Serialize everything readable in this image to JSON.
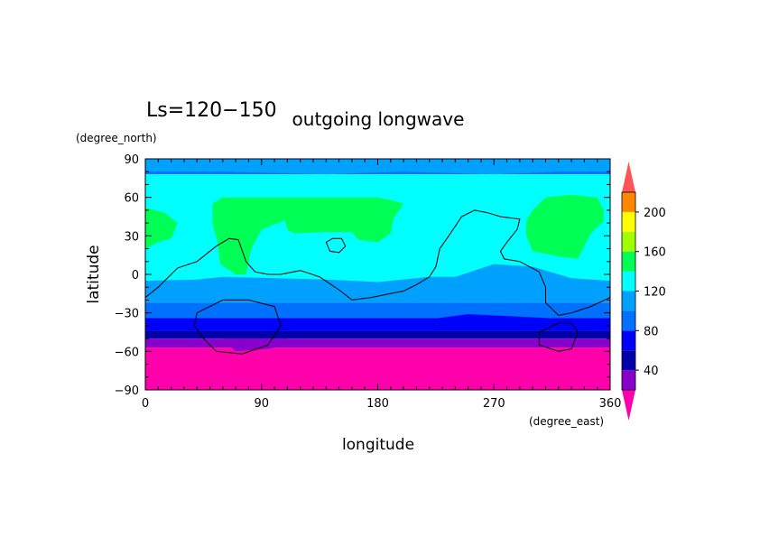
{
  "chart_data": {
    "type": "heatmap",
    "title_left": "Ls=120−150",
    "title": "outgoing longwave",
    "xlabel": "longitude",
    "ylabel": "latitude",
    "x_units": "(degree_east)",
    "y_units": "(degree_north)",
    "xlim": [
      0,
      360
    ],
    "ylim": [
      -90,
      90
    ],
    "xticks": [
      "0",
      "90",
      "180",
      "270",
      "360"
    ],
    "xtick_values": [
      0,
      90,
      180,
      270,
      360
    ],
    "yticks": [
      "90",
      "60",
      "30",
      "0",
      "−30",
      "−60",
      "−90"
    ],
    "ytick_values": [
      90,
      60,
      30,
      0,
      -30,
      -60,
      -90
    ],
    "colorbar": {
      "levels": [
        20,
        40,
        60,
        80,
        100,
        120,
        140,
        160,
        180,
        200,
        220
      ],
      "labels": [
        "40",
        "80",
        "120",
        "160",
        "200"
      ],
      "label_values": [
        40,
        80,
        120,
        160,
        200
      ],
      "colors": [
        "#8800cc",
        "#0000aa",
        "#0000ff",
        "#0070ff",
        "#00a0ff",
        "#00ffff",
        "#00ff55",
        "#a0ff00",
        "#ffff00",
        "#ff8800",
        "#ff3333"
      ],
      "under_color": "#ff00aa",
      "over_color": "#ff5555"
    },
    "bands": [
      {
        "lat_from": 90,
        "lat_to": 85,
        "color": "#00a0ff"
      },
      {
        "lat_from": 85,
        "lat_to": 78,
        "color": "#0070ff"
      },
      {
        "lat_from": 78,
        "lat_to": -8,
        "color": "#00ffff"
      },
      {
        "lat_from": -8,
        "lat_to": -22,
        "color": "#00a0ff"
      },
      {
        "lat_from": -22,
        "lat_to": -34,
        "color": "#0070ff"
      },
      {
        "lat_from": -34,
        "lat_to": -44,
        "color": "#0000ff"
      },
      {
        "lat_from": -44,
        "lat_to": -50,
        "color": "#0000aa"
      },
      {
        "lat_from": -50,
        "lat_to": -57,
        "color": "#8800cc"
      },
      {
        "lat_from": -57,
        "lat_to": -90,
        "color": "#ff00aa"
      }
    ],
    "regions": [
      {
        "color": "#00a0ff",
        "points": [
          [
            0,
            80
          ],
          [
            60,
            80
          ],
          [
            140,
            78
          ],
          [
            200,
            80
          ],
          [
            270,
            78
          ],
          [
            320,
            80
          ],
          [
            360,
            80
          ],
          [
            360,
            86
          ],
          [
            0,
            86
          ]
        ]
      },
      {
        "color": "#00ff55",
        "points": [
          [
            52,
            55
          ],
          [
            60,
            60
          ],
          [
            180,
            60
          ],
          [
            190,
            58
          ],
          [
            200,
            55
          ],
          [
            192,
            43
          ],
          [
            190,
            32
          ],
          [
            180,
            25
          ],
          [
            165,
            27
          ],
          [
            160,
            33
          ],
          [
            140,
            33
          ],
          [
            115,
            32
          ],
          [
            110,
            35
          ],
          [
            108,
            42
          ],
          [
            90,
            35
          ],
          [
            82,
            20
          ],
          [
            78,
            0
          ],
          [
            70,
            0
          ],
          [
            58,
            8
          ],
          [
            56,
            25
          ],
          [
            52,
            40
          ]
        ]
      },
      {
        "color": "#00ff55",
        "points": [
          [
            0,
            52
          ],
          [
            15,
            48
          ],
          [
            25,
            40
          ],
          [
            20,
            28
          ],
          [
            10,
            25
          ],
          [
            0,
            20
          ]
        ]
      },
      {
        "color": "#00ff55",
        "points": [
          [
            300,
            50
          ],
          [
            310,
            60
          ],
          [
            330,
            62
          ],
          [
            350,
            60
          ],
          [
            355,
            50
          ],
          [
            355,
            42
          ],
          [
            345,
            32
          ],
          [
            335,
            12
          ],
          [
            320,
            14
          ],
          [
            300,
            18
          ],
          [
            295,
            30
          ],
          [
            295,
            42
          ]
        ]
      },
      {
        "color": "#00a0ff",
        "points": [
          [
            0,
            -5
          ],
          [
            40,
            -4
          ],
          [
            60,
            -2
          ],
          [
            100,
            -3
          ],
          [
            140,
            -4
          ],
          [
            180,
            -6
          ],
          [
            220,
            -2
          ],
          [
            240,
            -2
          ],
          [
            270,
            8
          ],
          [
            300,
            6
          ],
          [
            330,
            -3
          ],
          [
            360,
            -5
          ],
          [
            360,
            -10
          ],
          [
            0,
            -10
          ]
        ]
      },
      {
        "color": "#0000ff",
        "points": [
          [
            0,
            -34
          ],
          [
            100,
            -35
          ],
          [
            180,
            -36
          ],
          [
            220,
            -35
          ],
          [
            250,
            -31
          ],
          [
            290,
            -33
          ],
          [
            330,
            -35
          ],
          [
            360,
            -34
          ],
          [
            360,
            -40
          ],
          [
            0,
            -40
          ]
        ]
      },
      {
        "color": "#8800cc",
        "points": [
          [
            60,
            -50
          ],
          [
            70,
            -60
          ],
          [
            95,
            -58
          ],
          [
            110,
            -55
          ],
          [
            110,
            -50
          ]
        ]
      }
    ],
    "coast_path": [
      [
        0,
        -18
      ],
      [
        10,
        -10
      ],
      [
        25,
        5
      ],
      [
        40,
        10
      ],
      [
        55,
        22
      ],
      [
        65,
        28
      ],
      [
        72,
        27
      ],
      [
        78,
        10
      ],
      [
        85,
        2
      ],
      [
        95,
        0
      ],
      [
        105,
        0
      ],
      [
        120,
        3
      ],
      [
        135,
        -2
      ],
      [
        150,
        -12
      ],
      [
        160,
        -20
      ],
      [
        175,
        -18
      ],
      [
        190,
        -15
      ],
      [
        200,
        -13
      ],
      [
        210,
        -8
      ],
      [
        220,
        -2
      ],
      [
        225,
        6
      ],
      [
        228,
        20
      ],
      [
        235,
        30
      ],
      [
        245,
        45
      ],
      [
        255,
        50
      ],
      [
        265,
        48
      ],
      [
        275,
        45
      ],
      [
        290,
        43
      ],
      [
        288,
        35
      ],
      [
        280,
        25
      ],
      [
        275,
        18
      ],
      [
        278,
        12
      ],
      [
        290,
        10
      ],
      [
        305,
        2
      ],
      [
        310,
        -10
      ],
      [
        310,
        -22
      ],
      [
        320,
        -32
      ],
      [
        330,
        -30
      ],
      [
        345,
        -25
      ],
      [
        360,
        -18
      ]
    ],
    "closed_contours": [
      [
        [
          40,
          -30
        ],
        [
          60,
          -20
        ],
        [
          80,
          -20
        ],
        [
          100,
          -25
        ],
        [
          105,
          -40
        ],
        [
          95,
          -55
        ],
        [
          75,
          -62
        ],
        [
          55,
          -60
        ],
        [
          45,
          -50
        ],
        [
          38,
          -40
        ]
      ],
      [
        [
          305,
          -45
        ],
        [
          320,
          -38
        ],
        [
          330,
          -38
        ],
        [
          335,
          -45
        ],
        [
          330,
          -58
        ],
        [
          320,
          -60
        ],
        [
          305,
          -55
        ]
      ],
      [
        [
          140,
          25
        ],
        [
          145,
          28
        ],
        [
          152,
          28
        ],
        [
          155,
          22
        ],
        [
          150,
          17
        ],
        [
          143,
          18
        ]
      ]
    ]
  }
}
